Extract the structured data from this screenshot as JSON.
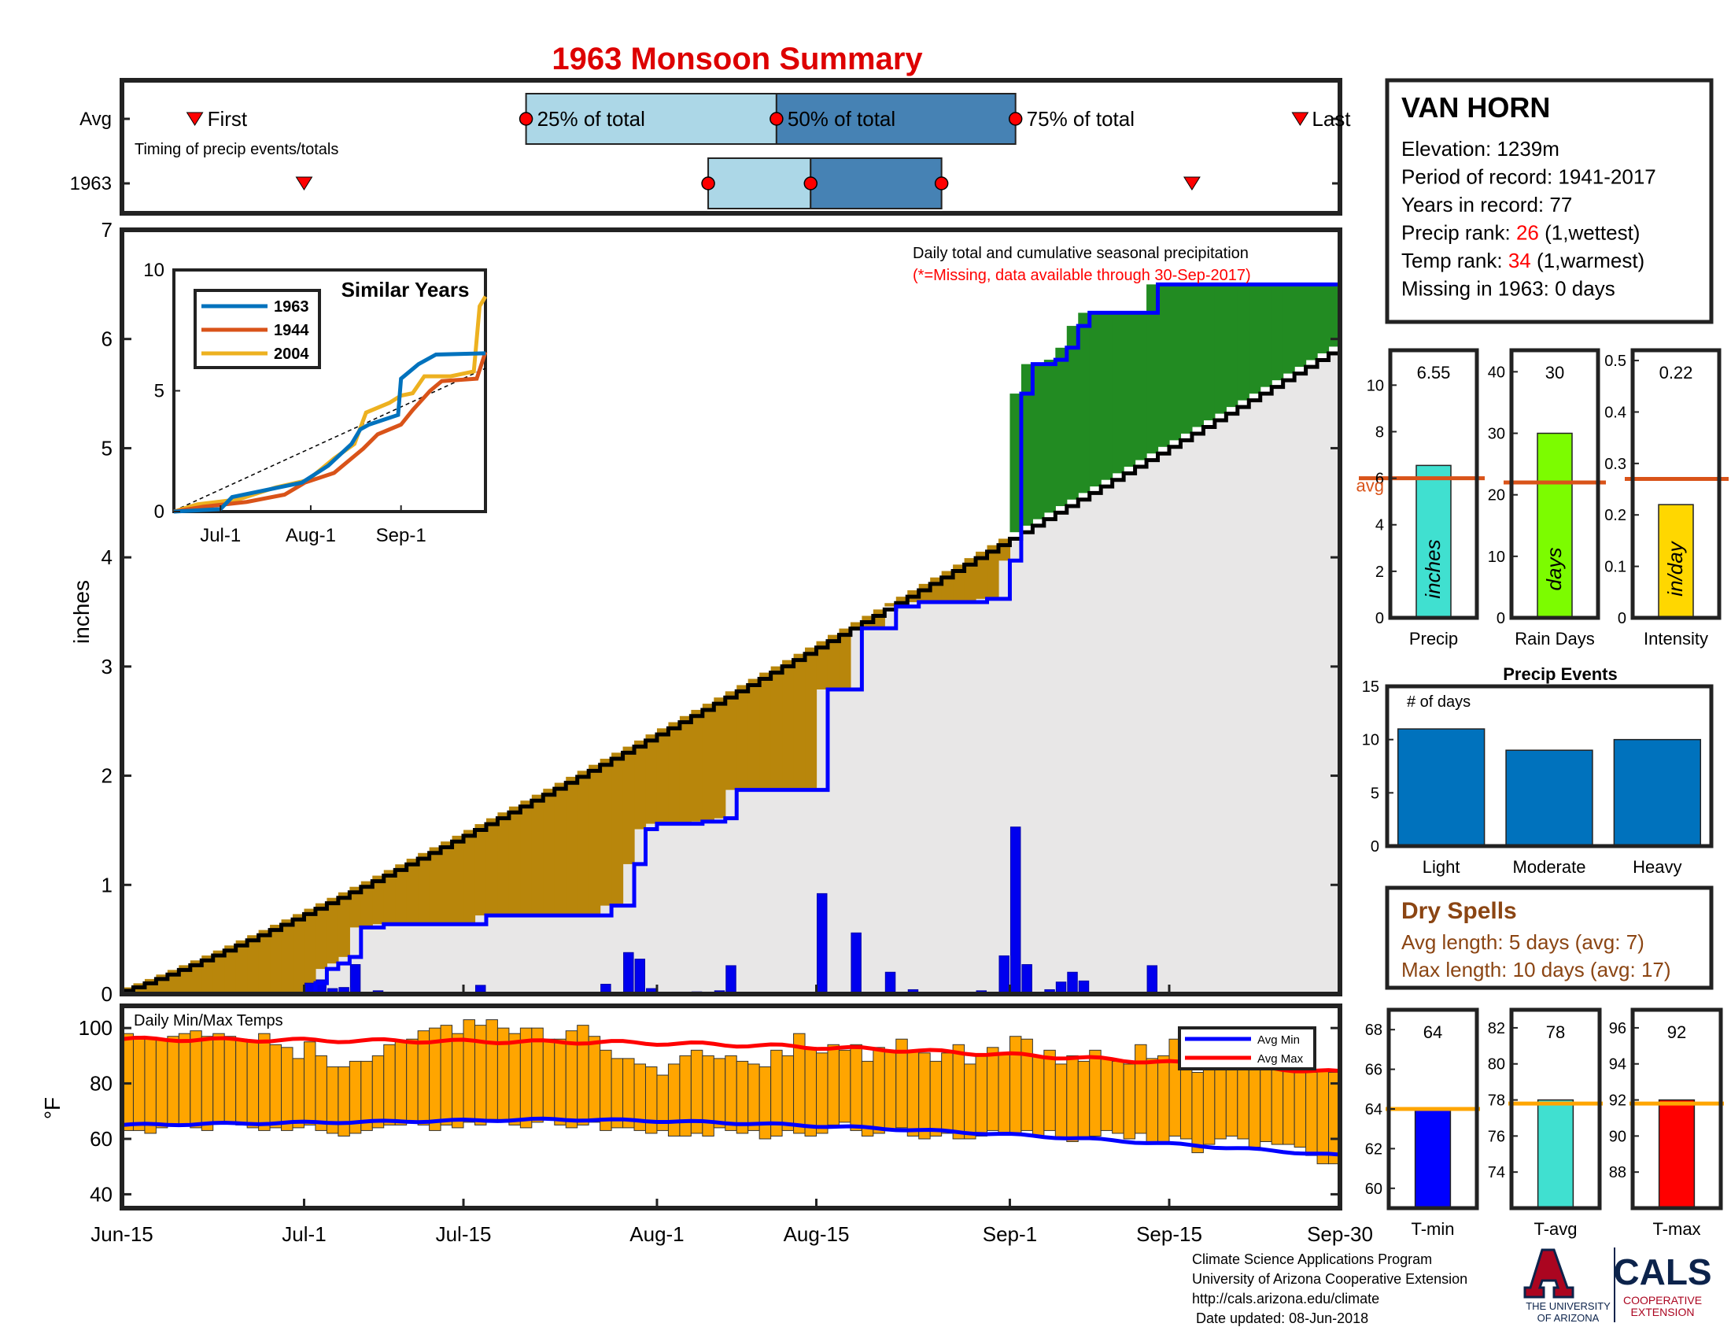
{
  "page": {
    "title": "1963 Monsoon Summary",
    "footer_lines": [
      "Climate Science Applications Program",
      "University of Arizona Cooperative Extension",
      "http://cals.arizona.edu/climate",
      " Date updated: 08-Jun-2018"
    ],
    "logo_ua_lines": [
      "THE UNIVERSITY",
      "OF ARIZONA"
    ],
    "logo_cals_text": "CALS",
    "logo_cals_lines": [
      "COOPERATIVE",
      "EXTENSION"
    ]
  },
  "colors": {
    "title": "#dd0000",
    "fill_dry": "#b8860b",
    "fill_wet": "#228b22",
    "fill_bg": "#e8e7e7",
    "obs_line": "#0000ff",
    "avg_line": "#000000",
    "daily_bar": "#0000ee",
    "box_light": "#acd7e7",
    "box_dark": "#4682b4",
    "temp_bar": "#ffa500",
    "avg_min": "#0000ff",
    "avg_max": "#ff0000",
    "orange_line": "#d95319",
    "precip_bar": "#40e0d0",
    "raindays_bar": "#7cfc00",
    "intensity_bar": "#ffd700",
    "event_bar": "#0072bd",
    "dry_spell_text": "#8b4513",
    "tmin_bar": "#0000ff",
    "tavg_bar": "#40e0d0",
    "tmax_bar": "#ff0000",
    "temp_avg_line": "#ffa500",
    "inset_1963": "#0072bd",
    "inset_1944": "#d95319",
    "inset_2004": "#edb120"
  },
  "station": {
    "name": "VAN HORN",
    "lines": [
      {
        "text": "Elevation: 1239m"
      },
      {
        "text": "Period of record: 1941-2017"
      },
      {
        "text": "Years in record: 77"
      },
      {
        "pre": "Precip rank: ",
        "val": "26",
        "post": " (1,wettest)"
      },
      {
        "pre": "Temp rank: ",
        "val": "34",
        "post": " (1,warmest)"
      },
      {
        "text": "Missing in 1963: 0 days"
      }
    ]
  },
  "chart_data": [
    {
      "id": "timing",
      "type": "box-timeline",
      "rows": [
        "Avg",
        "1963"
      ],
      "caption": "Timing of precip events/totals",
      "avg": {
        "first": 6.4,
        "p25": 35.5,
        "p50": 57.5,
        "p75": 78.5,
        "last": 103.5
      },
      "y1963": {
        "first": 16.0,
        "p25": 51.5,
        "p50": 60.5,
        "p75": 72.0,
        "last": 94.0
      },
      "labels": {
        "first": "First",
        "p25": "25% of total",
        "p50": "50% of total",
        "p75": "75% of total",
        "last": "Last"
      }
    },
    {
      "id": "main-precip",
      "type": "area",
      "ylabel": "inches",
      "ylim": [
        0,
        7
      ],
      "yticks": [
        0,
        1,
        2,
        3,
        4,
        5,
        6,
        7
      ],
      "xlim": [
        0,
        107
      ],
      "xticks": [
        {
          "v": 0,
          "label": "Jun-15"
        },
        {
          "v": 16,
          "label": "Jul-1"
        },
        {
          "v": 30,
          "label": "Jul-15"
        },
        {
          "v": 47,
          "label": "Aug-1"
        },
        {
          "v": 61,
          "label": "Aug-15"
        },
        {
          "v": 78,
          "label": "Sep-1"
        },
        {
          "v": 92,
          "label": "Sep-15"
        },
        {
          "v": 107,
          "label": "Sep-30"
        }
      ],
      "annotation": "Daily total and cumulative seasonal precipitation",
      "annotation_red": "(*=Missing, data available through 30-Sep-2017)",
      "avg_start": 0.03,
      "avg_end": 5.93,
      "daily": [
        {
          "d": 16,
          "v": 0.1
        },
        {
          "d": 17,
          "v": 0.13
        },
        {
          "d": 18,
          "v": 0.05
        },
        {
          "d": 19,
          "v": 0.06
        },
        {
          "d": 20,
          "v": 0.27
        },
        {
          "d": 22,
          "v": 0.03
        },
        {
          "d": 31,
          "v": 0.08
        },
        {
          "d": 42,
          "v": 0.09
        },
        {
          "d": 44,
          "v": 0.38
        },
        {
          "d": 45,
          "v": 0.32
        },
        {
          "d": 46,
          "v": 0.05
        },
        {
          "d": 50,
          "v": 0.02
        },
        {
          "d": 52,
          "v": 0.03
        },
        {
          "d": 53,
          "v": 0.26
        },
        {
          "d": 61,
          "v": 0.92
        },
        {
          "d": 64,
          "v": 0.56
        },
        {
          "d": 67,
          "v": 0.2
        },
        {
          "d": 69,
          "v": 0.04
        },
        {
          "d": 75,
          "v": 0.03
        },
        {
          "d": 77,
          "v": 0.35
        },
        {
          "d": 78,
          "v": 1.53
        },
        {
          "d": 79,
          "v": 0.27
        },
        {
          "d": 81,
          "v": 0.04
        },
        {
          "d": 82,
          "v": 0.11
        },
        {
          "d": 83,
          "v": 0.2
        },
        {
          "d": 84,
          "v": 0.12
        },
        {
          "d": 90,
          "v": 0.26
        }
      ]
    },
    {
      "id": "inset-similar",
      "type": "line",
      "title": "Similar Years",
      "ylim": [
        0,
        10
      ],
      "yticks": [
        0,
        5,
        10
      ],
      "xticks": [
        {
          "v": 16,
          "label": "Jul-1"
        },
        {
          "v": 47,
          "label": "Aug-1"
        },
        {
          "v": 78,
          "label": "Sep-1"
        }
      ],
      "xlim": [
        0,
        107
      ],
      "series": [
        {
          "name": "1963",
          "color_key": "inset_1963",
          "points": [
            [
              0,
              0
            ],
            [
              16,
              0.1
            ],
            [
              20,
              0.6
            ],
            [
              44,
              1.2
            ],
            [
              53,
              1.9
            ],
            [
              61,
              2.8
            ],
            [
              64,
              3.4
            ],
            [
              67,
              3.6
            ],
            [
              77,
              4.0
            ],
            [
              78,
              5.5
            ],
            [
              84,
              6.1
            ],
            [
              90,
              6.5
            ],
            [
              107,
              6.55
            ]
          ]
        },
        {
          "name": "1944",
          "color_key": "inset_1944",
          "points": [
            [
              0,
              0
            ],
            [
              10,
              0.2
            ],
            [
              25,
              0.4
            ],
            [
              38,
              0.7
            ],
            [
              45,
              1.2
            ],
            [
              55,
              1.6
            ],
            [
              65,
              2.6
            ],
            [
              70,
              3.2
            ],
            [
              78,
              3.6
            ],
            [
              82,
              4.2
            ],
            [
              88,
              5.0
            ],
            [
              92,
              5.4
            ],
            [
              104,
              5.5
            ],
            [
              107,
              6.6
            ]
          ]
        },
        {
          "name": "2004",
          "color_key": "inset_2004",
          "points": [
            [
              0,
              0
            ],
            [
              8,
              0.3
            ],
            [
              22,
              0.5
            ],
            [
              35,
              1.0
            ],
            [
              46,
              1.3
            ],
            [
              55,
              2.2
            ],
            [
              62,
              2.8
            ],
            [
              66,
              4.1
            ],
            [
              74,
              4.5
            ],
            [
              78,
              4.8
            ],
            [
              82,
              4.9
            ],
            [
              86,
              5.6
            ],
            [
              95,
              5.6
            ],
            [
              103,
              5.8
            ],
            [
              105,
              8.5
            ],
            [
              107,
              8.9
            ]
          ]
        }
      ],
      "avg_dashed": [
        [
          0,
          0.03
        ],
        [
          107,
          5.93
        ]
      ]
    },
    {
      "id": "temps",
      "type": "bar",
      "label": "Daily Min/Max Temps",
      "ylabel": "°F",
      "ylim": [
        35,
        108
      ],
      "yticks": [
        40,
        60,
        80,
        100
      ],
      "legend": [
        "Avg Min",
        "Avg Max"
      ],
      "legend_position": "top-right",
      "tmax": [
        98,
        97,
        96,
        96,
        97,
        98,
        99,
        97,
        98,
        97,
        96,
        95,
        98,
        94,
        93,
        89,
        95,
        90,
        86,
        86,
        88,
        88,
        90,
        94,
        95,
        96,
        99,
        100,
        101,
        98,
        103,
        101,
        103,
        100,
        98,
        100,
        100,
        96,
        96,
        99,
        101,
        97,
        92,
        89,
        89,
        87,
        86,
        83,
        87,
        90,
        92,
        90,
        89,
        90,
        88,
        87,
        86,
        92,
        90,
        98,
        93,
        91,
        94,
        92,
        94,
        88,
        93,
        92,
        96,
        92,
        91,
        88,
        91,
        94,
        87,
        90,
        93,
        91,
        97,
        96,
        90,
        92,
        87,
        90,
        88,
        92,
        89,
        88,
        87,
        94,
        89,
        90,
        96,
        93,
        84,
        92,
        87,
        88,
        86,
        87,
        86,
        86,
        85,
        86,
        84,
        85,
        84,
        84
      ],
      "tmin": [
        63,
        63,
        62,
        64,
        65,
        65,
        64,
        63,
        66,
        66,
        65,
        64,
        63,
        64,
        63,
        64,
        65,
        63,
        62,
        61,
        62,
        63,
        64,
        65,
        65,
        66,
        65,
        63,
        65,
        64,
        66,
        65,
        67,
        66,
        65,
        64,
        66,
        67,
        65,
        64,
        65,
        66,
        63,
        64,
        64,
        63,
        62,
        63,
        61,
        61,
        62,
        61,
        64,
        63,
        62,
        63,
        60,
        61,
        63,
        62,
        61,
        62,
        65,
        66,
        63,
        61,
        62,
        63,
        64,
        61,
        60,
        61,
        62,
        60,
        60,
        61,
        63,
        62,
        62,
        63,
        61,
        63,
        60,
        59,
        60,
        61,
        63,
        62,
        60,
        62,
        59,
        58,
        61,
        60,
        55,
        58,
        60,
        61,
        60,
        57,
        59,
        58,
        58,
        57,
        54,
        51,
        51,
        47
      ],
      "avg_min_start": 65,
      "avg_min_mid": 67,
      "avg_min_end": 54,
      "avg_max_start": 96,
      "avg_max_mid": 95,
      "avg_max_end": 84
    },
    {
      "id": "precip-bar",
      "type": "bar",
      "xlabel": "Precip",
      "vertical_label": "inches",
      "value": 6.55,
      "value_label": "6.55",
      "avg": 6.0,
      "avg_label": "avg",
      "ylim": [
        0,
        11.5
      ],
      "yticks": [
        0,
        2,
        4,
        6,
        8,
        10
      ]
    },
    {
      "id": "raindays-bar",
      "type": "bar",
      "xlabel": "Rain Days",
      "vertical_label": "days",
      "value": 30,
      "value_label": "30",
      "avg": 22,
      "ylim": [
        0,
        43.5
      ],
      "yticks": [
        0,
        10,
        20,
        30,
        40
      ]
    },
    {
      "id": "intensity-bar",
      "type": "bar",
      "xlabel": "Intensity",
      "vertical_label": "in/day",
      "value": 0.22,
      "value_label": "0.22",
      "avg": 0.27,
      "ylim": [
        0,
        0.52
      ],
      "yticks": [
        0,
        0.1,
        0.2,
        0.3,
        0.4,
        0.5
      ]
    },
    {
      "id": "events",
      "type": "bar",
      "title": "Precip Events",
      "ylabel": "# of days",
      "categories": [
        "Light",
        "Moderate",
        "Heavy"
      ],
      "values": [
        11,
        9,
        10
      ],
      "ylim": [
        0,
        15
      ],
      "yticks": [
        0,
        5,
        10,
        15
      ]
    },
    {
      "id": "tmin-bar",
      "type": "bar",
      "xlabel": "T-min",
      "value": 64,
      "value_label": "64",
      "avg": 64,
      "ylim": [
        59,
        69
      ],
      "yticks": [
        60,
        62,
        64,
        66,
        68
      ]
    },
    {
      "id": "tavg-bar",
      "type": "bar",
      "xlabel": "T-avg",
      "value": 78,
      "value_label": "78",
      "avg": 77.8,
      "ylim": [
        72,
        83
      ],
      "yticks": [
        74,
        76,
        78,
        80,
        82
      ]
    },
    {
      "id": "tmax-bar",
      "type": "bar",
      "xlabel": "T-max",
      "value": 92,
      "value_label": "92",
      "avg": 91.8,
      "ylim": [
        86,
        97
      ],
      "yticks": [
        88,
        90,
        92,
        94,
        96
      ]
    }
  ],
  "dry_spells": {
    "title": "Dry Spells",
    "lines": [
      "Avg length: 5 days (avg: 7)",
      "Max length: 10 days (avg: 17)"
    ]
  }
}
